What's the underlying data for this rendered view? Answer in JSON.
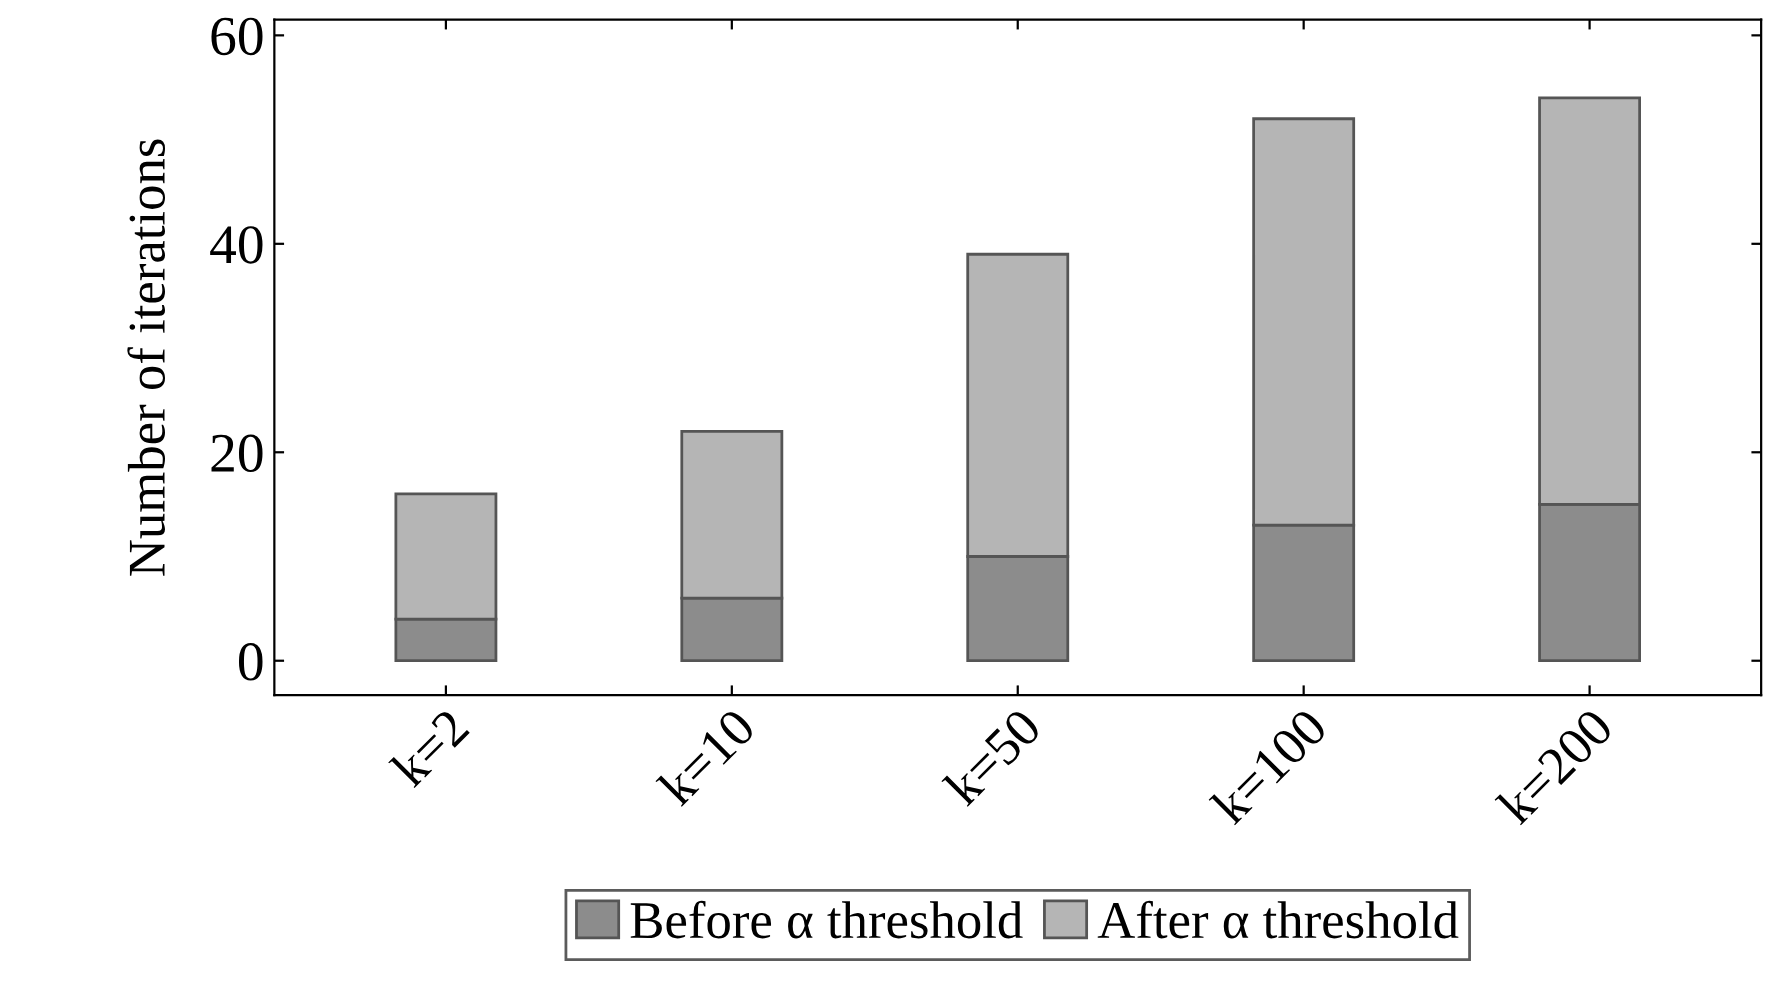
{
  "chart_data": {
    "type": "bar",
    "stacked": true,
    "ylabel": "Number of iterations",
    "categories": [
      "k=2",
      "k=10",
      "k=50",
      "k=100",
      "k=200"
    ],
    "series": [
      {
        "name": "Before α threshold",
        "color": "#8c8c8c",
        "values": [
          4,
          6,
          10,
          13,
          15
        ]
      },
      {
        "name": "After α threshold",
        "color": "#b5b5b5",
        "values": [
          12,
          16,
          29,
          39,
          39
        ]
      }
    ],
    "ylim": [
      -3.3,
      61.5
    ],
    "yticks": [
      0,
      20,
      40,
      60
    ],
    "grid": false,
    "legend": "bottom"
  }
}
